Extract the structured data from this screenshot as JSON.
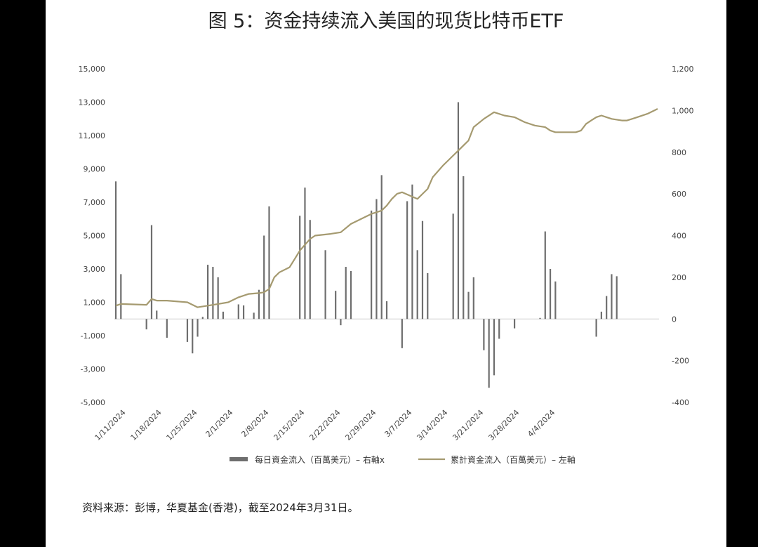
{
  "page": {
    "title": "图 5：资金持续流入美国的现货比特币ETF",
    "source": "资料来源：彭博，华夏基金(香港)，截至2024年3月31日。"
  },
  "chart_data": {
    "type": "bar",
    "title": "图 5：资金持续流入美国的现货比特币ETF",
    "x_tick_labels": [
      "1/11/2024",
      "1/18/2024",
      "1/25/2024",
      "2/1/2024",
      "2/8/2024",
      "2/15/2024",
      "2/22/2024",
      "2/29/2024",
      "3/7/2024",
      "3/14/2024",
      "3/21/2024",
      "3/28/2024",
      "4/4/2024"
    ],
    "left_axis": {
      "ylim": [
        -5000,
        15000
      ],
      "ticks": [
        "15,000",
        "13,000",
        "11,000",
        "9,000",
        "7,000",
        "5,000",
        "3,000",
        "1,000",
        "-1,000",
        "-3,000",
        "-5,000"
      ]
    },
    "right_axis": {
      "ylim": [
        -400,
        1200
      ],
      "ticks": [
        "1,200",
        "1,000",
        "800",
        "600",
        "400",
        "200",
        "0",
        "-200",
        "-400"
      ]
    },
    "legend_position": "bottom",
    "series": [
      {
        "name": "每日資金流入（百萬美元）– 右軸x",
        "type": "bar",
        "axis": "right",
        "color": "#6e6e6e",
        "x": [
          0,
          1,
          6,
          7,
          8,
          10,
          14,
          15,
          16,
          17,
          18,
          19,
          20,
          21,
          24,
          25,
          27,
          28,
          29,
          30,
          31,
          36,
          37,
          38,
          41,
          42,
          43,
          44,
          45,
          46,
          50,
          51,
          52,
          53,
          56,
          57,
          58,
          59,
          60,
          61,
          62,
          66,
          67,
          68,
          69,
          70,
          72,
          73,
          74,
          75,
          78,
          79,
          80,
          81,
          82,
          83,
          84,
          85,
          86,
          87,
          88,
          94,
          95,
          96,
          97,
          98,
          102,
          103,
          104,
          105,
          106
        ],
        "values": [
          660,
          215,
          -50,
          450,
          40,
          -90,
          -110,
          -165,
          -85,
          10,
          260,
          250,
          200,
          35,
          70,
          65,
          30,
          140,
          400,
          540,
          0,
          495,
          630,
          475,
          330,
          0,
          135,
          -30,
          250,
          230,
          520,
          575,
          690,
          85,
          -140,
          565,
          645,
          330,
          470,
          220,
          0,
          505,
          1040,
          685,
          130,
          200,
          -150,
          -330,
          -270,
          -95,
          -45,
          0,
          0,
          0,
          0,
          5,
          420,
          240,
          180,
          0,
          0,
          -85,
          35,
          110,
          215,
          205,
          0,
          0,
          0,
          0,
          0
        ]
      },
      {
        "name": "累計資金流入（百萬美元）– 左軸",
        "type": "line",
        "axis": "left",
        "color": "#a59a70",
        "x": [
          0,
          1,
          6,
          7,
          8,
          10,
          14,
          16,
          18,
          20,
          22,
          24,
          26,
          28,
          29,
          30,
          31,
          32,
          34,
          35,
          36,
          38,
          39,
          42,
          43,
          44,
          46,
          48,
          50,
          52,
          53,
          54,
          55,
          56,
          59,
          60,
          61,
          62,
          64,
          66,
          67,
          68,
          69,
          70,
          72,
          74,
          76,
          78,
          80,
          82,
          84,
          85,
          86,
          90,
          91,
          92,
          93,
          94,
          95,
          96,
          97,
          98,
          99,
          100,
          101,
          102,
          104,
          106
        ],
        "values": [
          800,
          900,
          850,
          1200,
          1100,
          1100,
          1000,
          700,
          800,
          900,
          1000,
          1300,
          1500,
          1550,
          1600,
          1800,
          2500,
          2800,
          3100,
          3600,
          4100,
          4800,
          5000,
          5100,
          5150,
          5200,
          5700,
          6000,
          6300,
          6500,
          6800,
          7200,
          7500,
          7600,
          7200,
          7500,
          7800,
          8500,
          9200,
          9800,
          10100,
          10400,
          10700,
          11500,
          12000,
          12400,
          12200,
          12100,
          11800,
          11600,
          11500,
          11300,
          11200,
          11200,
          11300,
          11700,
          11900,
          12100,
          12200,
          12100,
          12000,
          11950,
          11900,
          11900,
          12000,
          12100,
          12300,
          12600
        ]
      }
    ]
  }
}
